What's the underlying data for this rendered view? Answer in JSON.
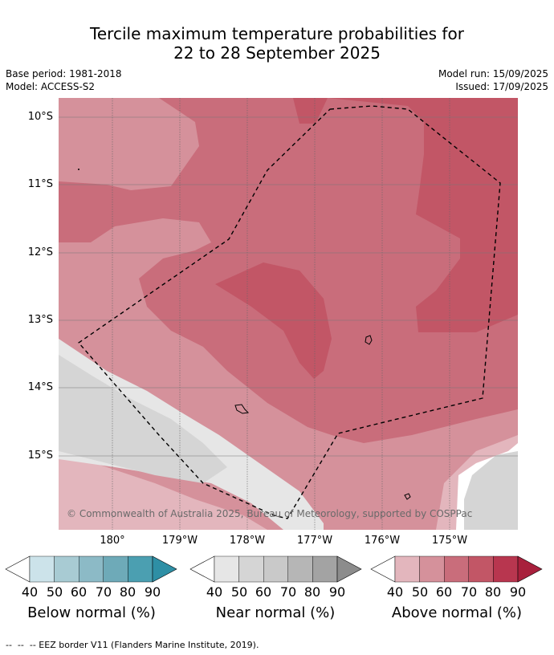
{
  "title_line1": "Tercile maximum temperature probabilities for",
  "title_line2": "22 to 28 September 2025",
  "base_period": "Base period: 1981-2018",
  "model": "Model: ACCESS-S2",
  "model_run": "Model run: 15/09/2025",
  "issued": "Issued: 17/09/2025",
  "lat_labels": [
    "10°S",
    "11°S",
    "12°S",
    "13°S",
    "14°S",
    "15°S"
  ],
  "lon_labels": [
    "180°",
    "179°W",
    "178°W",
    "177°W",
    "176°W",
    "175°W"
  ],
  "copyright": "© Commonwealth of Australia 2025, Bureau of Meteorology, supported by COSPPac",
  "colorbars": [
    {
      "label": "Below normal (%)",
      "ticks": [
        "40",
        "50",
        "60",
        "70",
        "80",
        "90"
      ],
      "colors": [
        "#cce3ea",
        "#a8cbd3",
        "#8cbac6",
        "#6eaab8",
        "#4b9fb1",
        "#2e8fa5"
      ]
    },
    {
      "label": "Near normal (%)",
      "ticks": [
        "40",
        "50",
        "60",
        "70",
        "80",
        "90"
      ],
      "colors": [
        "#e6e6e6",
        "#d5d5d5",
        "#c9c9c9",
        "#b6b6b6",
        "#a3a3a3",
        "#8c8c8c"
      ]
    },
    {
      "label": "Above normal (%)",
      "ticks": [
        "40",
        "50",
        "60",
        "70",
        "80",
        "90"
      ],
      "colors": [
        "#e3b6bd",
        "#d5919b",
        "#c96d7b",
        "#c25666",
        "#b8364f",
        "#a8203c"
      ]
    }
  ],
  "footer": "--  --  -- EEZ border V11 (Flanders Marine Institute, 2019)."
}
